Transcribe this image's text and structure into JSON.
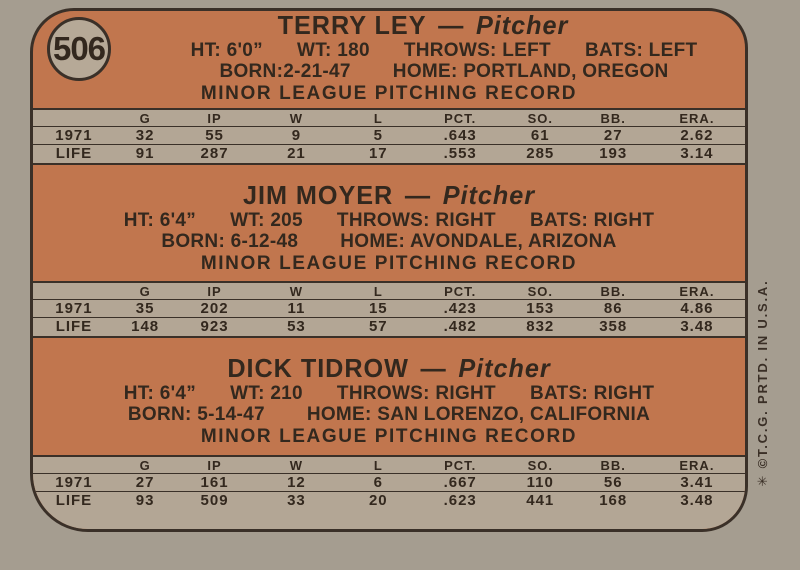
{
  "colors": {
    "scan_background": "#a59d90",
    "card_orange": "#c1764e",
    "panel_beige": "#b3a695",
    "ink": "#33281e",
    "outline": "#3a3028"
  },
  "card_number": "506",
  "name_separator": "—",
  "record_title": "MINOR LEAGUE PITCHING RECORD",
  "copyright": "✳ ©T.C.G. PRTD. IN U.S.A.",
  "table": {
    "headers": [
      "G",
      "IP",
      "W",
      "L",
      "PCT.",
      "SO.",
      "BB.",
      "ERA."
    ]
  },
  "players": [
    {
      "name": "TERRY LEY",
      "position": "Pitcher",
      "ht": "HT: 6'0”",
      "wt": "WT: 180",
      "throws": "THROWS: LEFT",
      "bats": "BATS: LEFT",
      "born": "BORN:2-21-47",
      "home": "HOME: PORTLAND, OREGON",
      "stats": [
        {
          "label": "1971",
          "values": [
            "32",
            "55",
            "9",
            "5",
            ".643",
            "61",
            "27",
            "2.62"
          ]
        },
        {
          "label": "LIFE",
          "values": [
            "91",
            "287",
            "21",
            "17",
            ".553",
            "285",
            "193",
            "3.14"
          ]
        }
      ]
    },
    {
      "name": "JIM MOYER",
      "position": "Pitcher",
      "ht": "HT: 6'4”",
      "wt": "WT: 205",
      "throws": "THROWS: RIGHT",
      "bats": "BATS: RIGHT",
      "born": "BORN: 6-12-48",
      "home": "HOME: AVONDALE, ARIZONA",
      "stats": [
        {
          "label": "1971",
          "values": [
            "35",
            "202",
            "11",
            "15",
            ".423",
            "153",
            "86",
            "4.86"
          ]
        },
        {
          "label": "LIFE",
          "values": [
            "148",
            "923",
            "53",
            "57",
            ".482",
            "832",
            "358",
            "3.48"
          ]
        }
      ]
    },
    {
      "name": "DICK TIDROW",
      "position": "Pitcher",
      "ht": "HT: 6'4”",
      "wt": "WT: 210",
      "throws": "THROWS: RIGHT",
      "bats": "BATS: RIGHT",
      "born": "BORN: 5-14-47",
      "home": "HOME: SAN LORENZO, CALIFORNIA",
      "stats": [
        {
          "label": "1971",
          "values": [
            "27",
            "161",
            "12",
            "6",
            ".667",
            "110",
            "56",
            "3.41"
          ]
        },
        {
          "label": "LIFE",
          "values": [
            "93",
            "509",
            "33",
            "20",
            ".623",
            "441",
            "168",
            "3.48"
          ]
        }
      ]
    }
  ]
}
